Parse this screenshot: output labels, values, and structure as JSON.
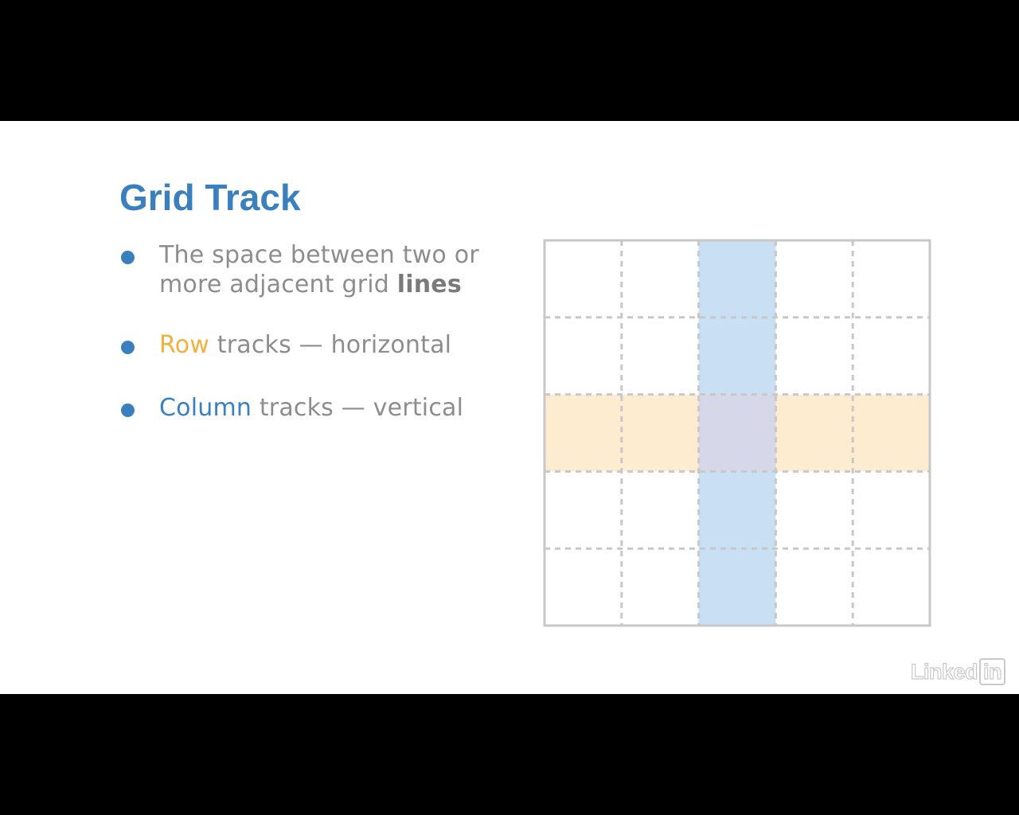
{
  "slide": {
    "title": "Grid Track",
    "bullets": [
      {
        "text_before": "The space between two or more adjacent grid ",
        "emphasis": "lines"
      },
      {
        "highlight": "Row",
        "text_after": " tracks — horizontal"
      },
      {
        "highlight": "Column",
        "text_after": " tracks — vertical"
      }
    ]
  },
  "diagram": {
    "columns": 5,
    "rows": 5,
    "highlighted_column": 2,
    "highlighted_row": 2,
    "colors": {
      "column_track": "#c9dff3",
      "row_track": "#fdeccf",
      "intersection": "#d6d8ea",
      "outer_border": "#c8c8c8",
      "grid_lines": "#c8c8c8",
      "accent_blue": "#3a80bf",
      "accent_yellow": "#f2b03c"
    }
  },
  "branding": {
    "logo_text": "Linked",
    "logo_box_text": "in"
  }
}
